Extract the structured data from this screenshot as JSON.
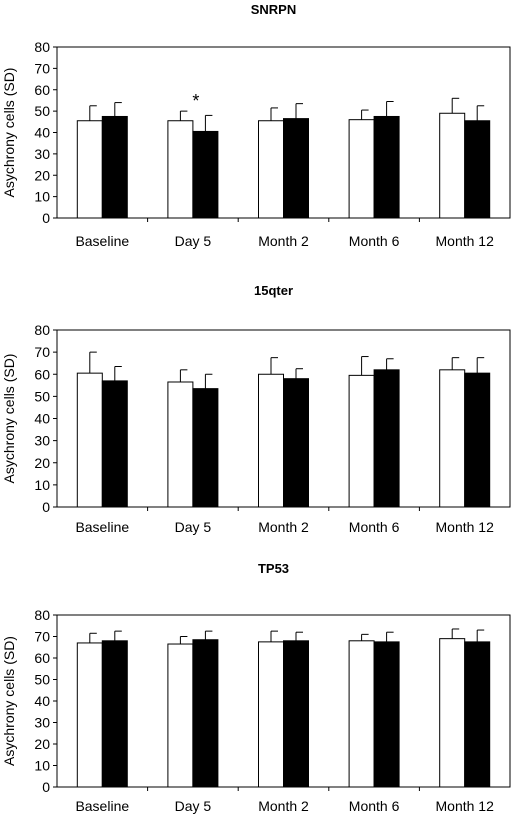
{
  "chart_data": [
    {
      "type": "bar",
      "title": "SNRPN",
      "ylabel": "Asychrony cells (SD)",
      "xlabel": "",
      "ylim": [
        0,
        80
      ],
      "yticks": [
        0,
        10,
        20,
        30,
        40,
        50,
        60,
        70,
        80
      ],
      "categories": [
        "Baseline",
        "Day 5",
        "Month 2",
        "Month 6",
        "Month 12"
      ],
      "series": [
        {
          "color": "#ffffff",
          "values": [
            45.5,
            45.5,
            45.5,
            46,
            49
          ],
          "errors": [
            7,
            4.5,
            6,
            4.5,
            7
          ]
        },
        {
          "color": "#000000",
          "values": [
            47.5,
            40.5,
            46.5,
            47.5,
            45.5
          ],
          "errors": [
            6.5,
            7.5,
            7,
            7,
            7
          ]
        }
      ],
      "annotations": [
        {
          "text": "*",
          "category": "Day 5"
        }
      ],
      "grid": false
    },
    {
      "type": "bar",
      "title": "15qter",
      "ylabel": "Asychrony cells (SD)",
      "xlabel": "",
      "ylim": [
        0,
        80
      ],
      "yticks": [
        0,
        10,
        20,
        30,
        40,
        50,
        60,
        70,
        80
      ],
      "categories": [
        "Baseline",
        "Day 5",
        "Month 2",
        "Month 6",
        "Month 12"
      ],
      "series": [
        {
          "color": "#ffffff",
          "values": [
            60.5,
            56.5,
            60,
            59.5,
            62
          ],
          "errors": [
            9.5,
            5.5,
            7.5,
            8.5,
            5.5
          ]
        },
        {
          "color": "#000000",
          "values": [
            57,
            53.5,
            58,
            62,
            60.5
          ],
          "errors": [
            6.5,
            6.5,
            4.5,
            5,
            7
          ]
        }
      ],
      "annotations": [],
      "grid": false
    },
    {
      "type": "bar",
      "title": "TP53",
      "ylabel": "Asychrony cells (SD)",
      "xlabel": "",
      "ylim": [
        0,
        80
      ],
      "yticks": [
        0,
        10,
        20,
        30,
        40,
        50,
        60,
        70,
        80
      ],
      "categories": [
        "Baseline",
        "Day 5",
        "Month 2",
        "Month 6",
        "Month 12"
      ],
      "series": [
        {
          "color": "#ffffff",
          "values": [
            67,
            66.5,
            67.5,
            68,
            69
          ],
          "errors": [
            4.5,
            3.5,
            5,
            3,
            4.5
          ]
        },
        {
          "color": "#000000",
          "values": [
            68,
            68.5,
            68,
            67.5,
            67.5
          ],
          "errors": [
            4.5,
            4,
            4,
            4.5,
            5.5
          ]
        }
      ],
      "annotations": [],
      "grid": false
    }
  ]
}
